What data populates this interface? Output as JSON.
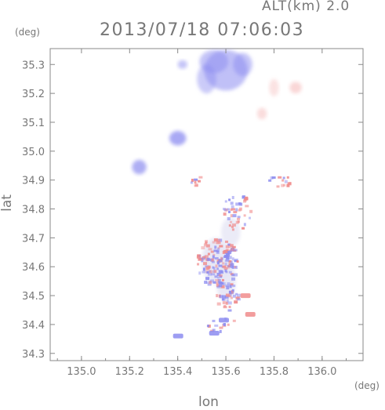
{
  "header": {
    "alt_label": "ALT(km) 2.0",
    "timestamp": "2013/07/18 07:06:03"
  },
  "axes": {
    "x_unit": "(deg)",
    "y_unit": "(deg)",
    "x_label": "lon",
    "y_label": "lat",
    "x_ticks": [
      "135.0",
      "135.2",
      "135.4",
      "135.6",
      "135.8",
      "136.0"
    ],
    "y_ticks": [
      "34.3",
      "34.4",
      "34.5",
      "34.6",
      "34.7",
      "34.8",
      "34.9",
      "35.0",
      "35.1",
      "35.2",
      "35.3"
    ]
  },
  "map": {
    "lon_range": [
      134.87,
      136.17
    ],
    "lat_range": [
      34.275,
      35.355
    ],
    "colors": {
      "toward": "#8c8cf0",
      "away": "#f08c8c",
      "neutral": "#e6e6f5",
      "axis": "#888888"
    },
    "echoes": [
      {
        "lon": 135.6,
        "lat": 35.28,
        "rlon": 0.09,
        "rlat": 0.07,
        "color": "toward",
        "opacity": 0.55
      },
      {
        "lon": 135.55,
        "lat": 35.31,
        "rlon": 0.06,
        "rlat": 0.04,
        "color": "toward",
        "opacity": 0.5
      },
      {
        "lon": 135.52,
        "lat": 35.25,
        "rlon": 0.04,
        "rlat": 0.05,
        "color": "toward",
        "opacity": 0.45
      },
      {
        "lon": 135.67,
        "lat": 35.3,
        "rlon": 0.04,
        "rlat": 0.04,
        "color": "toward",
        "opacity": 0.5
      },
      {
        "lon": 135.42,
        "lat": 35.3,
        "rlon": 0.02,
        "rlat": 0.015,
        "color": "toward",
        "opacity": 0.5
      },
      {
        "lon": 135.4,
        "lat": 35.045,
        "rlon": 0.035,
        "rlat": 0.025,
        "color": "toward",
        "opacity": 0.75
      },
      {
        "lon": 135.24,
        "lat": 34.945,
        "rlon": 0.03,
        "rlat": 0.025,
        "color": "toward",
        "opacity": 0.7
      },
      {
        "lon": 135.89,
        "lat": 35.22,
        "rlon": 0.025,
        "rlat": 0.02,
        "color": "away",
        "opacity": 0.35
      },
      {
        "lon": 135.8,
        "lat": 35.22,
        "rlon": 0.02,
        "rlat": 0.03,
        "color": "away",
        "opacity": 0.25
      },
      {
        "lon": 135.75,
        "lat": 35.13,
        "rlon": 0.02,
        "rlat": 0.02,
        "color": "away",
        "opacity": 0.3
      },
      {
        "lon": 135.56,
        "lat": 34.62,
        "rlon": 0.06,
        "rlat": 0.08,
        "color": "neutral",
        "opacity": 0.9
      },
      {
        "lon": 135.6,
        "lat": 34.55,
        "rlon": 0.04,
        "rlat": 0.07,
        "color": "neutral",
        "opacity": 0.9
      },
      {
        "lon": 135.62,
        "lat": 34.72,
        "rlon": 0.04,
        "rlat": 0.05,
        "color": "neutral",
        "opacity": 0.8
      }
    ],
    "speckle_zones": [
      {
        "lon": 135.56,
        "lat": 34.62,
        "rlon": 0.085,
        "rlat": 0.09,
        "count": 160
      },
      {
        "lon": 135.6,
        "lat": 34.5,
        "rlon": 0.05,
        "rlat": 0.05,
        "count": 40
      },
      {
        "lon": 135.64,
        "lat": 34.8,
        "rlon": 0.06,
        "rlat": 0.07,
        "count": 45
      },
      {
        "lon": 135.82,
        "lat": 34.9,
        "rlon": 0.05,
        "rlat": 0.02,
        "count": 14
      },
      {
        "lon": 135.46,
        "lat": 34.9,
        "rlon": 0.04,
        "rlat": 0.02,
        "count": 8
      },
      {
        "lon": 135.58,
        "lat": 34.4,
        "rlon": 0.06,
        "rlat": 0.03,
        "count": 14
      }
    ],
    "solid_cells": [
      {
        "lon": 135.7,
        "lat": 34.435,
        "color": "away"
      },
      {
        "lon": 135.68,
        "lat": 34.5,
        "color": "away"
      },
      {
        "lon": 135.59,
        "lat": 34.415,
        "color": "toward"
      },
      {
        "lon": 135.4,
        "lat": 34.36,
        "color": "toward"
      },
      {
        "lon": 135.55,
        "lat": 34.37,
        "color": "toward"
      }
    ]
  }
}
